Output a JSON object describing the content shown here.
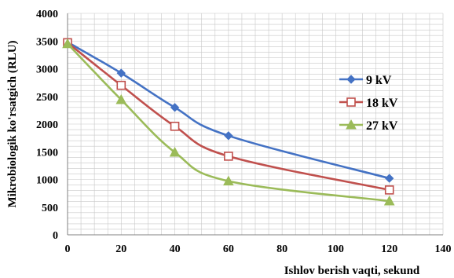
{
  "chart_data": {
    "type": "line",
    "xlabel": "Ishlov berish vaqti, sekund",
    "ylabel": "Mikrobiologik ko'rsatgich (RLU)",
    "xlim": [
      0,
      140
    ],
    "ylim": [
      0,
      4000
    ],
    "xticks": [
      0,
      20,
      40,
      60,
      80,
      100,
      120,
      140
    ],
    "yticks": [
      0,
      500,
      1000,
      1500,
      2000,
      2500,
      3000,
      3500,
      4000
    ],
    "grid": true,
    "legend_position": "right",
    "series": [
      {
        "name": "9 kV",
        "color": "#4472C4",
        "marker": "diamond",
        "x": [
          0,
          20,
          40,
          60,
          120
        ],
        "y": [
          3480,
          2920,
          2300,
          1790,
          1020
        ]
      },
      {
        "name": "18 kV",
        "color": "#C0504D",
        "marker": "square-open",
        "x": [
          0,
          20,
          40,
          60,
          120
        ],
        "y": [
          3470,
          2700,
          1960,
          1420,
          810
        ]
      },
      {
        "name": "27 kV",
        "color": "#9BBB59",
        "marker": "triangle",
        "x": [
          0,
          20,
          40,
          60,
          120
        ],
        "y": [
          3450,
          2440,
          1490,
          970,
          610
        ]
      }
    ]
  }
}
